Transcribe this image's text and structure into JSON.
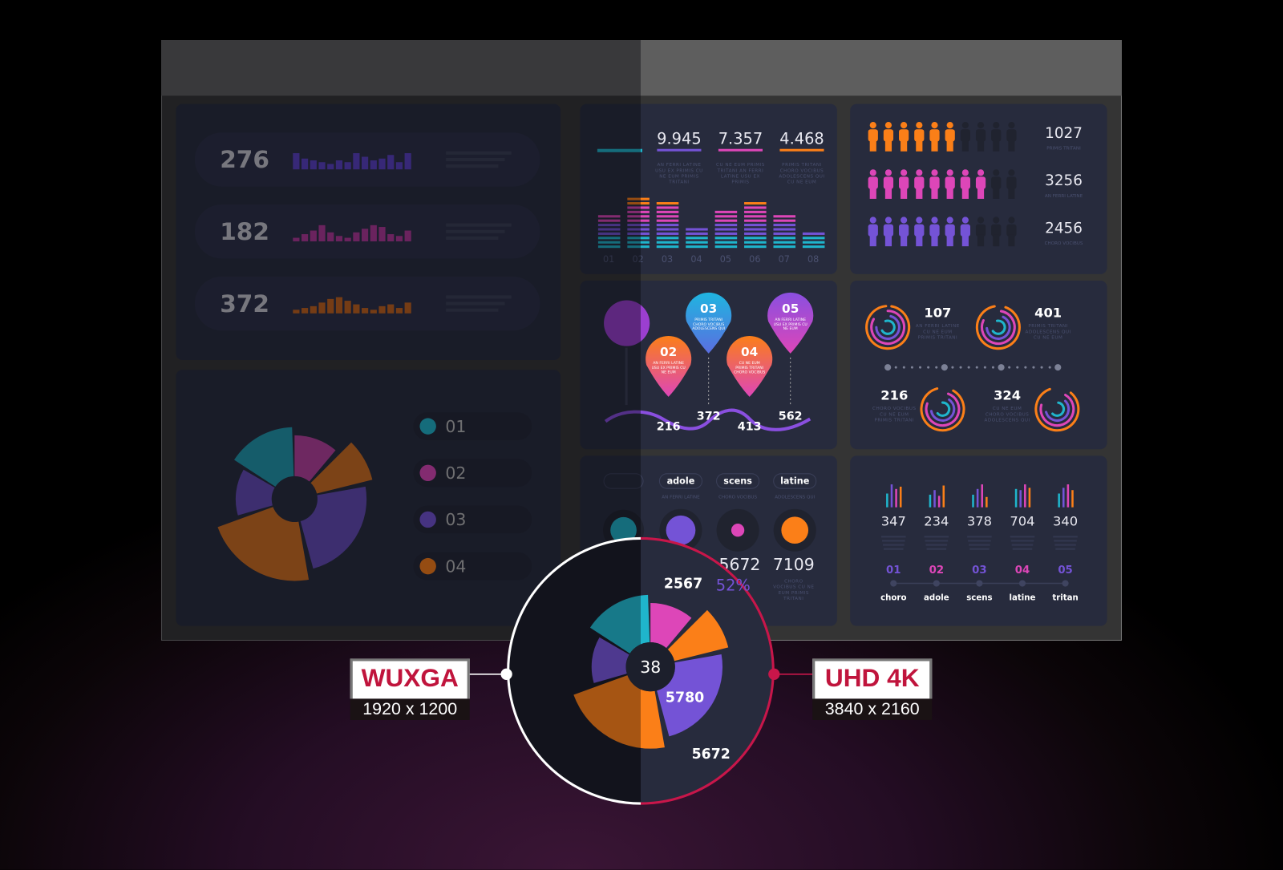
{
  "colors": {
    "teal": "#1fb5cc",
    "purple": "#7453d6",
    "pink": "#dd46b8",
    "orange": "#fb7f18",
    "accent_red": "#c8164a",
    "panel": "#272b3d"
  },
  "comparison": {
    "left": {
      "name": "WUXGA",
      "resolution": "1920 x 1200"
    },
    "right": {
      "name": "UHD 4K",
      "resolution": "3840 x 2160"
    }
  },
  "stats_rows": [
    {
      "value": "276",
      "color": "#5b40c4",
      "bars": [
        0.9,
        0.6,
        0.5,
        0.4,
        0.3,
        0.5,
        0.4,
        0.9,
        0.7,
        0.5,
        0.6,
        0.8,
        0.4,
        0.9
      ]
    },
    {
      "value": "182",
      "color": "#b2389a",
      "bars": [
        0.2,
        0.4,
        0.6,
        0.9,
        0.5,
        0.3,
        0.2,
        0.5,
        0.7,
        0.9,
        0.8,
        0.4,
        0.3,
        0.6
      ]
    },
    {
      "value": "372",
      "color": "#c4631c",
      "bars": [
        0.2,
        0.3,
        0.4,
        0.6,
        0.8,
        0.9,
        0.7,
        0.5,
        0.3,
        0.2,
        0.4,
        0.5,
        0.3,
        0.6
      ]
    }
  ],
  "pie": {
    "center_label": "38",
    "percent_label": "52%",
    "slice_labels": [
      "2567",
      "5780",
      "5672"
    ],
    "legend": [
      {
        "num": "01",
        "color": "#1fb5cc"
      },
      {
        "num": "02",
        "color": "#dd46b8"
      },
      {
        "num": "03",
        "color": "#7453d6"
      },
      {
        "num": "04",
        "color": "#fb7f18"
      }
    ]
  },
  "equalizer": {
    "headline": [
      {
        "value": "9.945",
        "color": "#7453d6",
        "caption": "AN FERRI LATINE USU EX PRIMIS CU NE EUM PRIMIS TRITANI"
      },
      {
        "value": "7.357",
        "color": "#dd46b8",
        "caption": "CU NE EUM PRIMIS TRITANI AN FERRI LATINE USU EX PRIMIS"
      },
      {
        "value": "4.468",
        "color": "#fb7f18",
        "caption": "PRIMIS TRITANI CHORO VOCIBUS ADOLESCENS QUI CU NE EUM"
      }
    ],
    "categories": [
      "01",
      "02",
      "03",
      "04",
      "05",
      "06",
      "07",
      "08"
    ],
    "line_counts": [
      8,
      12,
      11,
      5,
      9,
      11,
      8,
      4
    ]
  },
  "people": {
    "total": 10,
    "rows": [
      {
        "value": "1027",
        "caption": "PRIMIS TRITANI",
        "filled": 6,
        "color": "#fb7f18"
      },
      {
        "value": "3256",
        "caption": "AN FERRI LATINE",
        "filled": 8,
        "color": "#dd46b8"
      },
      {
        "value": "2456",
        "caption": "CHORO VOCIBUS",
        "filled": 7,
        "color": "#7453d6"
      }
    ]
  },
  "rings": [
    {
      "value": "107",
      "caption": "AN FERRI LATINE CU NE EUM PRIMIS TRITANI"
    },
    {
      "value": "401",
      "caption": "PRIMIS TRITANI ADOLESCENS QUI CU NE EUM"
    },
    {
      "value": "216",
      "caption": "CHORO VOCIBUS CU NE EUM PRIMIS TRITANI"
    },
    {
      "value": "324",
      "caption": "CU NE EUM CHORO VOCIBUS ADOLESCENS QUI"
    }
  ],
  "pins": [
    {
      "num": "02",
      "text": "AN FERRI LATINE USU EX PRIMIS CU NE EUM",
      "value": "216",
      "grad": [
        "#fb7f18",
        "#dd46b8"
      ]
    },
    {
      "num": "03",
      "text": "PRIMIS TRITANI CHORO VOCIBUS ADOLESCENS QUI",
      "value": "372",
      "grad": [
        "#1fb5e0",
        "#5b6ee0"
      ]
    },
    {
      "num": "04",
      "text": "CU NE EUM PRIMIS TRITANI CHORO VOCIBUS",
      "value": "413",
      "grad": [
        "#fb7f18",
        "#dd46b8"
      ]
    },
    {
      "num": "05",
      "text": "AN FERRI LATINE USU EX PRIMIS CU NE EUM",
      "value": "562",
      "grad": [
        "#8a4fe0",
        "#dd46b8"
      ]
    }
  ],
  "tags": [
    {
      "label": "adole",
      "caption": "AN FERRI LATINE",
      "color": "#7453d6",
      "level": 0.72
    },
    {
      "label": "scens",
      "caption": "CHORO VOCIBUS",
      "color": "#dd46b8",
      "level": 0.32
    },
    {
      "label": "latine",
      "caption": "ADOLESCENS QUI",
      "color": "#fb7f18",
      "level": 0.66
    }
  ],
  "tag_values": {
    "hidden": "5672",
    "last": "7109",
    "last_caption": "CHORO VOCIBUS CU NE EUM PRIMIS TRITANI"
  },
  "mini_bars": [
    {
      "value": "347",
      "num": "01",
      "label": "choro",
      "num_color": "#7453d6",
      "bars": [
        0.6,
        1,
        0.8,
        0.9
      ]
    },
    {
      "value": "234",
      "num": "02",
      "label": "adole",
      "num_color": "#dd46b8",
      "bars": [
        0.55,
        0.75,
        0.5,
        0.95
      ]
    },
    {
      "value": "378",
      "num": "03",
      "label": "scens",
      "num_color": "#7453d6",
      "bars": [
        0.55,
        0.8,
        1,
        0.45
      ]
    },
    {
      "value": "704",
      "num": "04",
      "label": "latine",
      "num_color": "#dd46b8",
      "bars": [
        0.8,
        0.75,
        1,
        0.85
      ]
    },
    {
      "value": "340",
      "num": "05",
      "label": "tritan",
      "num_color": "#7453d6",
      "bars": [
        0.6,
        0.85,
        1,
        0.75
      ]
    }
  ]
}
